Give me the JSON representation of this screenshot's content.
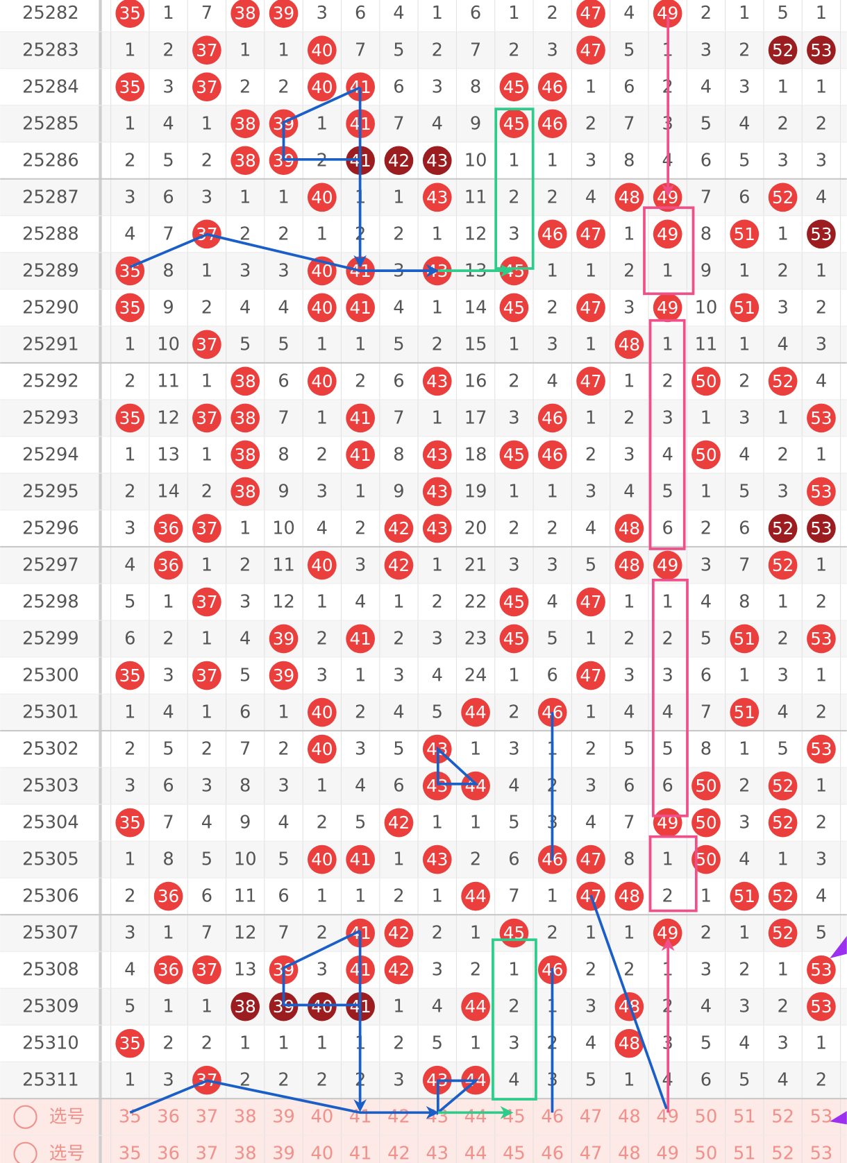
{
  "columns": [
    35,
    36,
    37,
    38,
    39,
    40,
    41,
    42,
    43,
    44,
    45,
    46,
    47,
    48,
    49,
    50,
    51,
    52,
    53
  ],
  "rows": [
    {
      "issue": 25282,
      "cells": [
        {
          "value": 35,
          "ball": "red"
        },
        1,
        7,
        {
          "value": 38,
          "ball": "red"
        },
        {
          "value": 39,
          "ball": "red"
        },
        3,
        6,
        4,
        1,
        6,
        1,
        2,
        {
          "value": 47,
          "ball": "red"
        },
        4,
        {
          "value": 49,
          "ball": "red"
        },
        2,
        1,
        5,
        1
      ]
    },
    {
      "issue": 25283,
      "cells": [
        1,
        2,
        {
          "value": 37,
          "ball": "red"
        },
        1,
        1,
        {
          "value": 40,
          "ball": "red"
        },
        7,
        5,
        2,
        7,
        2,
        3,
        {
          "value": 47,
          "ball": "red"
        },
        5,
        1,
        3,
        2,
        {
          "value": 52,
          "ball": "dark"
        },
        {
          "value": 53,
          "ball": "dark"
        }
      ]
    },
    {
      "issue": 25284,
      "cells": [
        {
          "value": 35,
          "ball": "red"
        },
        3,
        {
          "value": 37,
          "ball": "red"
        },
        2,
        2,
        {
          "value": 40,
          "ball": "red"
        },
        {
          "value": 41,
          "ball": "red"
        },
        6,
        3,
        8,
        {
          "value": 45,
          "ball": "red"
        },
        {
          "value": 46,
          "ball": "red"
        },
        1,
        6,
        2,
        4,
        3,
        1,
        1
      ]
    },
    {
      "issue": 25285,
      "cells": [
        1,
        4,
        1,
        {
          "value": 38,
          "ball": "red"
        },
        {
          "value": 39,
          "ball": "red"
        },
        1,
        {
          "value": 41,
          "ball": "red"
        },
        7,
        4,
        9,
        {
          "value": 45,
          "ball": "red"
        },
        {
          "value": 46,
          "ball": "red"
        },
        2,
        7,
        3,
        5,
        4,
        2,
        2
      ]
    },
    {
      "issue": 25286,
      "cells": [
        2,
        5,
        2,
        {
          "value": 38,
          "ball": "red"
        },
        {
          "value": 39,
          "ball": "red"
        },
        2,
        {
          "value": 41,
          "ball": "dark"
        },
        {
          "value": 42,
          "ball": "dark"
        },
        {
          "value": 43,
          "ball": "dark"
        },
        10,
        1,
        1,
        3,
        8,
        4,
        6,
        5,
        3,
        3
      ]
    },
    {
      "issue": 25287,
      "cells": [
        3,
        6,
        3,
        1,
        1,
        {
          "value": 40,
          "ball": "red"
        },
        1,
        1,
        {
          "value": 43,
          "ball": "red"
        },
        11,
        2,
        2,
        4,
        {
          "value": 48,
          "ball": "red"
        },
        {
          "value": 49,
          "ball": "red"
        },
        7,
        6,
        {
          "value": 52,
          "ball": "red"
        },
        4
      ]
    },
    {
      "issue": 25288,
      "cells": [
        4,
        7,
        {
          "value": 37,
          "ball": "red"
        },
        2,
        2,
        1,
        2,
        2,
        1,
        12,
        3,
        {
          "value": 46,
          "ball": "red"
        },
        {
          "value": 47,
          "ball": "red"
        },
        1,
        {
          "value": 49,
          "ball": "red"
        },
        8,
        {
          "value": 51,
          "ball": "red"
        },
        1,
        {
          "value": 53,
          "ball": "dark"
        }
      ]
    },
    {
      "issue": 25289,
      "cells": [
        {
          "value": 35,
          "ball": "red"
        },
        8,
        1,
        3,
        3,
        {
          "value": 40,
          "ball": "red"
        },
        {
          "value": 41,
          "ball": "red"
        },
        3,
        {
          "value": 43,
          "ball": "red"
        },
        13,
        {
          "value": 45,
          "ball": "red"
        },
        1,
        1,
        2,
        1,
        9,
        1,
        2,
        1
      ]
    },
    {
      "issue": 25290,
      "cells": [
        {
          "value": 35,
          "ball": "red"
        },
        9,
        2,
        4,
        4,
        {
          "value": 40,
          "ball": "red"
        },
        {
          "value": 41,
          "ball": "red"
        },
        4,
        1,
        14,
        {
          "value": 45,
          "ball": "red"
        },
        2,
        {
          "value": 47,
          "ball": "red"
        },
        3,
        {
          "value": 49,
          "ball": "red"
        },
        10,
        {
          "value": 51,
          "ball": "red"
        },
        3,
        2
      ]
    },
    {
      "issue": 25291,
      "cells": [
        1,
        10,
        {
          "value": 37,
          "ball": "red"
        },
        5,
        5,
        1,
        1,
        5,
        2,
        15,
        1,
        3,
        1,
        {
          "value": 48,
          "ball": "red"
        },
        1,
        11,
        1,
        4,
        3
      ]
    },
    {
      "issue": 25292,
      "cells": [
        2,
        11,
        1,
        {
          "value": 38,
          "ball": "red"
        },
        6,
        {
          "value": 40,
          "ball": "red"
        },
        2,
        6,
        {
          "value": 43,
          "ball": "red"
        },
        16,
        2,
        4,
        {
          "value": 47,
          "ball": "red"
        },
        1,
        2,
        {
          "value": 50,
          "ball": "red"
        },
        2,
        {
          "value": 52,
          "ball": "red"
        },
        4
      ]
    },
    {
      "issue": 25293,
      "cells": [
        {
          "value": 35,
          "ball": "red"
        },
        12,
        {
          "value": 37,
          "ball": "red"
        },
        {
          "value": 38,
          "ball": "red"
        },
        7,
        1,
        {
          "value": 41,
          "ball": "red"
        },
        7,
        1,
        17,
        3,
        {
          "value": 46,
          "ball": "red"
        },
        1,
        2,
        3,
        1,
        3,
        1,
        {
          "value": 53,
          "ball": "red"
        }
      ]
    },
    {
      "issue": 25294,
      "cells": [
        1,
        13,
        1,
        {
          "value": 38,
          "ball": "red"
        },
        8,
        2,
        {
          "value": 41,
          "ball": "red"
        },
        8,
        {
          "value": 43,
          "ball": "red"
        },
        18,
        {
          "value": 45,
          "ball": "red"
        },
        {
          "value": 46,
          "ball": "red"
        },
        2,
        3,
        4,
        {
          "value": 50,
          "ball": "red"
        },
        4,
        2,
        1
      ]
    },
    {
      "issue": 25295,
      "cells": [
        2,
        14,
        2,
        {
          "value": 38,
          "ball": "red"
        },
        9,
        3,
        1,
        9,
        {
          "value": 43,
          "ball": "red"
        },
        19,
        1,
        1,
        3,
        4,
        5,
        1,
        5,
        3,
        {
          "value": 53,
          "ball": "red"
        }
      ]
    },
    {
      "issue": 25296,
      "cells": [
        3,
        {
          "value": 36,
          "ball": "red"
        },
        {
          "value": 37,
          "ball": "red"
        },
        1,
        10,
        4,
        2,
        {
          "value": 42,
          "ball": "red"
        },
        {
          "value": 43,
          "ball": "red"
        },
        20,
        2,
        2,
        4,
        {
          "value": 48,
          "ball": "red"
        },
        6,
        2,
        6,
        {
          "value": 52,
          "ball": "dark"
        },
        {
          "value": 53,
          "ball": "dark"
        }
      ]
    },
    {
      "issue": 25297,
      "cells": [
        4,
        {
          "value": 36,
          "ball": "red"
        },
        1,
        2,
        11,
        {
          "value": 40,
          "ball": "red"
        },
        3,
        {
          "value": 42,
          "ball": "red"
        },
        1,
        21,
        3,
        3,
        5,
        {
          "value": 48,
          "ball": "red"
        },
        {
          "value": 49,
          "ball": "red"
        },
        3,
        7,
        {
          "value": 52,
          "ball": "red"
        },
        1
      ]
    },
    {
      "issue": 25298,
      "cells": [
        5,
        1,
        {
          "value": 37,
          "ball": "red"
        },
        3,
        12,
        1,
        4,
        1,
        2,
        22,
        {
          "value": 45,
          "ball": "red"
        },
        4,
        {
          "value": 47,
          "ball": "red"
        },
        1,
        1,
        4,
        8,
        1,
        2
      ]
    },
    {
      "issue": 25299,
      "cells": [
        6,
        2,
        1,
        4,
        {
          "value": 39,
          "ball": "red"
        },
        2,
        {
          "value": 41,
          "ball": "red"
        },
        2,
        3,
        23,
        {
          "value": 45,
          "ball": "red"
        },
        5,
        1,
        2,
        2,
        5,
        {
          "value": 51,
          "ball": "red"
        },
        2,
        {
          "value": 53,
          "ball": "red"
        }
      ]
    },
    {
      "issue": 25300,
      "cells": [
        {
          "value": 35,
          "ball": "red"
        },
        3,
        {
          "value": 37,
          "ball": "red"
        },
        5,
        {
          "value": 39,
          "ball": "red"
        },
        3,
        1,
        3,
        4,
        24,
        1,
        6,
        {
          "value": 47,
          "ball": "red"
        },
        3,
        3,
        6,
        1,
        3,
        1
      ]
    },
    {
      "issue": 25301,
      "cells": [
        1,
        4,
        1,
        6,
        1,
        {
          "value": 40,
          "ball": "red"
        },
        2,
        4,
        5,
        {
          "value": 44,
          "ball": "red"
        },
        2,
        {
          "value": 46,
          "ball": "red"
        },
        1,
        4,
        4,
        7,
        {
          "value": 51,
          "ball": "red"
        },
        4,
        2
      ]
    },
    {
      "issue": 25302,
      "cells": [
        2,
        5,
        2,
        7,
        2,
        {
          "value": 40,
          "ball": "red"
        },
        3,
        5,
        {
          "value": 43,
          "ball": "red"
        },
        1,
        3,
        1,
        2,
        5,
        5,
        8,
        1,
        5,
        {
          "value": 53,
          "ball": "red"
        }
      ]
    },
    {
      "issue": 25303,
      "cells": [
        3,
        6,
        3,
        8,
        3,
        1,
        4,
        6,
        {
          "value": 43,
          "ball": "red"
        },
        {
          "value": 44,
          "ball": "red"
        },
        4,
        2,
        3,
        6,
        6,
        {
          "value": 50,
          "ball": "red"
        },
        2,
        {
          "value": 52,
          "ball": "red"
        },
        1
      ]
    },
    {
      "issue": 25304,
      "cells": [
        {
          "value": 35,
          "ball": "red"
        },
        7,
        4,
        9,
        4,
        2,
        5,
        {
          "value": 42,
          "ball": "red"
        },
        1,
        1,
        5,
        3,
        4,
        7,
        {
          "value": 49,
          "ball": "red"
        },
        {
          "value": 50,
          "ball": "red"
        },
        3,
        {
          "value": 52,
          "ball": "red"
        },
        2
      ]
    },
    {
      "issue": 25305,
      "cells": [
        1,
        8,
        5,
        10,
        5,
        {
          "value": 40,
          "ball": "red"
        },
        {
          "value": 41,
          "ball": "red"
        },
        1,
        {
          "value": 43,
          "ball": "red"
        },
        2,
        6,
        {
          "value": 46,
          "ball": "red"
        },
        {
          "value": 47,
          "ball": "red"
        },
        8,
        1,
        {
          "value": 50,
          "ball": "red"
        },
        4,
        1,
        3
      ]
    },
    {
      "issue": 25306,
      "cells": [
        2,
        {
          "value": 36,
          "ball": "red"
        },
        6,
        11,
        6,
        1,
        1,
        2,
        1,
        {
          "value": 44,
          "ball": "red"
        },
        7,
        1,
        {
          "value": 47,
          "ball": "red"
        },
        {
          "value": 48,
          "ball": "red"
        },
        2,
        1,
        {
          "value": 51,
          "ball": "red"
        },
        {
          "value": 52,
          "ball": "red"
        },
        4
      ]
    },
    {
      "issue": 25307,
      "cells": [
        3,
        1,
        7,
        12,
        7,
        2,
        {
          "value": 41,
          "ball": "red"
        },
        {
          "value": 42,
          "ball": "red"
        },
        2,
        1,
        {
          "value": 45,
          "ball": "red"
        },
        2,
        1,
        1,
        {
          "value": 49,
          "ball": "red"
        },
        2,
        1,
        {
          "value": 52,
          "ball": "red"
        },
        5
      ]
    },
    {
      "issue": 25308,
      "cells": [
        4,
        {
          "value": 36,
          "ball": "red"
        },
        {
          "value": 37,
          "ball": "red"
        },
        13,
        {
          "value": 39,
          "ball": "red"
        },
        3,
        {
          "value": 41,
          "ball": "red"
        },
        {
          "value": 42,
          "ball": "red"
        },
        3,
        2,
        1,
        {
          "value": 46,
          "ball": "red"
        },
        2,
        2,
        1,
        3,
        2,
        1,
        {
          "value": 53,
          "ball": "red"
        }
      ]
    },
    {
      "issue": 25309,
      "cells": [
        5,
        1,
        1,
        {
          "value": 38,
          "ball": "dark"
        },
        {
          "value": 39,
          "ball": "dark"
        },
        {
          "value": 40,
          "ball": "dark"
        },
        {
          "value": 41,
          "ball": "dark"
        },
        1,
        4,
        {
          "value": 44,
          "ball": "red"
        },
        2,
        1,
        3,
        {
          "value": 48,
          "ball": "red"
        },
        2,
        4,
        3,
        2,
        {
          "value": 53,
          "ball": "red"
        }
      ]
    },
    {
      "issue": 25310,
      "cells": [
        {
          "value": 35,
          "ball": "red"
        },
        2,
        2,
        1,
        1,
        1,
        1,
        2,
        5,
        1,
        3,
        2,
        4,
        {
          "value": 48,
          "ball": "red"
        },
        3,
        5,
        4,
        3,
        1
      ]
    },
    {
      "issue": 25311,
      "cells": [
        1,
        3,
        {
          "value": 37,
          "ball": "red"
        },
        2,
        2,
        2,
        2,
        3,
        {
          "value": 43,
          "ball": "red"
        },
        {
          "value": 44,
          "ball": "red"
        },
        4,
        3,
        5,
        1,
        4,
        6,
        5,
        4,
        2
      ]
    }
  ],
  "select_rows": [
    {
      "label": "选号"
    },
    {
      "label": "选号"
    }
  ]
}
